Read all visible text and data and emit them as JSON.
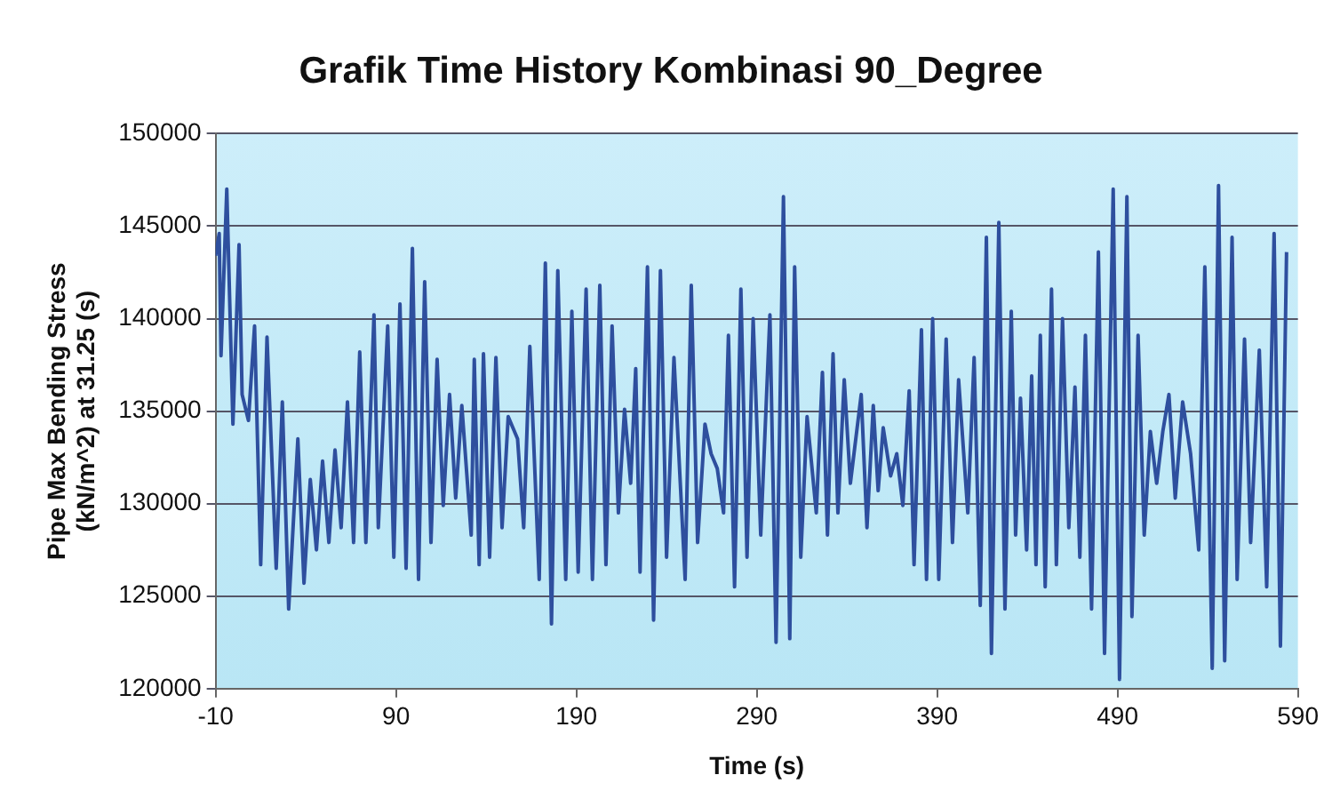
{
  "chart_data": {
    "type": "line",
    "title": "Grafik Time History Kombinasi 90_Degree",
    "xlabel": "Time (s)",
    "ylabel": "Pipe Max Bending Stress\n(kN/m^2) at 31.25 (s)",
    "xlim": [
      -10,
      590
    ],
    "xticks": [
      -10,
      90,
      190,
      290,
      390,
      490,
      590
    ],
    "ylim": [
      120000,
      150000
    ],
    "yticks": [
      120000,
      125000,
      130000,
      135000,
      140000,
      145000,
      150000
    ],
    "grid": "y",
    "legend": false,
    "marker": "none",
    "line_style": "solid",
    "series": [
      {
        "color": "#2e4f9e",
        "x": [
          -10,
          -8,
          -7,
          -3.8,
          -0.4,
          3,
          4.7,
          8.2,
          11.6,
          15,
          18.5,
          23.6,
          27,
          30.5,
          35.6,
          39,
          42.5,
          45.9,
          49.3,
          52.8,
          56.2,
          59.6,
          63.1,
          66.5,
          69.9,
          73.3,
          77.8,
          80.2,
          85.4,
          88.8,
          92.2,
          95.6,
          99.1,
          102.5,
          105.9,
          109.4,
          112.8,
          116.2,
          119.7,
          123.1,
          126.5,
          131.7,
          133.4,
          136.1,
          138.5,
          141.9,
          145.4,
          148.8,
          152.2,
          157.4,
          160.8,
          164.2,
          169.4,
          172.8,
          176.2,
          179.7,
          184.1,
          187.5,
          191,
          195.4,
          198.9,
          203,
          206.4,
          209.8,
          213.3,
          216.7,
          220.1,
          222.9,
          225.3,
          229.4,
          232.8,
          236.6,
          240,
          244.1,
          250.3,
          253.7,
          257.2,
          261.3,
          264.7,
          268.1,
          271.6,
          274.3,
          277.7,
          281.2,
          284.6,
          288,
          292.2,
          297.3,
          300.7,
          304.8,
          308.3,
          311,
          314.4,
          317.9,
          323,
          326.4,
          329.2,
          332.3,
          335,
          338.5,
          341.9,
          347.9,
          351.1,
          354.6,
          357.3,
          360.1,
          364.2,
          367.6,
          371,
          374.5,
          377.2,
          381.3,
          384.1,
          387.5,
          390.9,
          395,
          398.5,
          401.9,
          407,
          410.5,
          413.9,
          417.3,
          420.1,
          424.2,
          427.6,
          431.1,
          433.5,
          436.2,
          439.6,
          442.4,
          444.8,
          447.2,
          449.9,
          453.4,
          456.1,
          459.5,
          463,
          466.4,
          469.1,
          472.2,
          475.6,
          479.4,
          482.8,
          487.6,
          491.1,
          495.2,
          498,
          501.4,
          504.8,
          508.2,
          511.7,
          515.1,
          518.5,
          522,
          526.1,
          530.5,
          535,
          538.4,
          542.5,
          546,
          549.4,
          553.5,
          556.3,
          560.4,
          563.8,
          568.6,
          572.7,
          576.8,
          580.3,
          583.7
        ],
        "values": [
          143400,
          144600,
          138000,
          147000,
          134300,
          144000,
          135900,
          134500,
          139600,
          126700,
          139000,
          126500,
          135500,
          124300,
          133500,
          125700,
          131300,
          127500,
          132300,
          127900,
          132900,
          128700,
          135500,
          127900,
          138200,
          127900,
          140200,
          128700,
          139600,
          127100,
          140800,
          126500,
          143800,
          125900,
          142000,
          127900,
          137800,
          129900,
          135900,
          130300,
          135300,
          128300,
          137800,
          126700,
          138100,
          127100,
          137900,
          128700,
          134700,
          133500,
          128700,
          138500,
          125900,
          143000,
          123500,
          142600,
          125900,
          140400,
          126300,
          141600,
          125900,
          141800,
          126700,
          139600,
          129500,
          135100,
          131100,
          137300,
          126300,
          142800,
          123700,
          142600,
          127100,
          137900,
          125900,
          141800,
          127900,
          134300,
          132700,
          131900,
          129500,
          139100,
          125500,
          141600,
          127100,
          140000,
          128300,
          140200,
          122500,
          146600,
          122700,
          142800,
          127100,
          134700,
          129500,
          137100,
          128300,
          138100,
          129500,
          136700,
          131100,
          135900,
          128700,
          135300,
          130700,
          134100,
          131500,
          132700,
          129900,
          136100,
          126700,
          139400,
          125900,
          140000,
          125900,
          138900,
          127900,
          136700,
          129500,
          137900,
          124500,
          144400,
          121900,
          145200,
          124300,
          140400,
          128300,
          135700,
          127500,
          136900,
          126700,
          139100,
          125500,
          141600,
          126700,
          140000,
          128700,
          136300,
          127100,
          139100,
          124300,
          143600,
          121900,
          147000,
          120500,
          146600,
          123900,
          139100,
          128300,
          133900,
          131100,
          133900,
          135900,
          130300,
          135500,
          132700,
          127500,
          142800,
          121100,
          147200,
          121500,
          144400,
          125900,
          138900,
          127900,
          138300,
          125500,
          144600,
          122300,
          143600
        ]
      }
    ]
  }
}
